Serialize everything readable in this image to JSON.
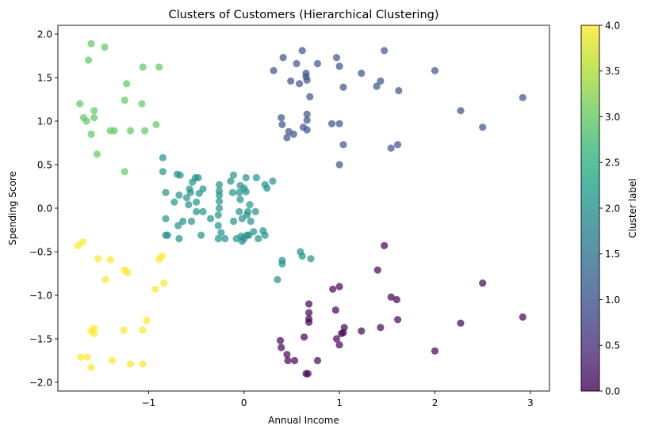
{
  "chart_data": {
    "type": "scatter",
    "title": "Clusters of Customers (Hierarchical Clustering)",
    "xlabel": "Annual Income",
    "ylabel": "Spending Score",
    "xlim": [
      -1.95,
      3.2
    ],
    "ylim": [
      -2.1,
      2.1
    ],
    "xticks": [
      -1,
      0,
      1,
      2,
      3
    ],
    "xtick_labels": [
      "−1",
      "0",
      "1",
      "2",
      "3"
    ],
    "yticks": [
      -2.0,
      -1.5,
      -1.0,
      -0.5,
      0.0,
      0.5,
      1.0,
      1.5,
      2.0
    ],
    "ytick_labels": [
      "−2.0",
      "−1.5",
      "−1.0",
      "−0.5",
      "0.0",
      "0.5",
      "1.0",
      "1.5",
      "2.0"
    ],
    "grid": false,
    "marker_alpha": 0.7,
    "colormap": "viridis",
    "colorbar": {
      "label": "Cluster label",
      "range": [
        0.0,
        4.0
      ],
      "ticks": [
        0.0,
        0.5,
        1.0,
        1.5,
        2.0,
        2.5,
        3.0,
        3.5,
        4.0
      ],
      "tick_labels": [
        "0.0",
        "0.5",
        "1.0",
        "1.5",
        "2.0",
        "2.5",
        "3.0",
        "3.5",
        "4.0"
      ],
      "stops": [
        "#440154",
        "#482878",
        "#3e4989",
        "#31688e",
        "#26828e",
        "#1f9e89",
        "#35b779",
        "#6ece58",
        "#b5de2b",
        "#fde725"
      ]
    },
    "cluster_colors": {
      "0": "#440154",
      "1": "#3b528b",
      "2": "#21918c",
      "3": "#5ec962",
      "4": "#fde725"
    },
    "series": [
      {
        "cluster": 0,
        "points": [
          [
            0.65,
            -1.9
          ],
          [
            0.67,
            -1.9
          ],
          [
            0.38,
            -1.52
          ],
          [
            0.39,
            -1.6
          ],
          [
            0.45,
            -1.68
          ],
          [
            0.46,
            -1.75
          ],
          [
            0.53,
            -1.75
          ],
          [
            0.63,
            -1.48
          ],
          [
            0.68,
            -1.1
          ],
          [
            0.68,
            -1.2
          ],
          [
            0.68,
            -1.27
          ],
          [
            0.68,
            -1.31
          ],
          [
            0.77,
            -1.75
          ],
          [
            0.96,
            -1.17
          ],
          [
            0.97,
            -1.5
          ],
          [
            1.0,
            -1.57
          ],
          [
            1.02,
            -1.44
          ],
          [
            1.04,
            -1.43
          ],
          [
            1.05,
            -1.37
          ],
          [
            1.0,
            -0.9
          ],
          [
            0.93,
            -0.93
          ],
          [
            1.23,
            -1.41
          ],
          [
            1.4,
            -0.71
          ],
          [
            1.43,
            -1.37
          ],
          [
            1.47,
            -0.43
          ],
          [
            1.54,
            -1.02
          ],
          [
            1.6,
            -1.05
          ],
          [
            1.61,
            -1.28
          ],
          [
            2.0,
            -1.64
          ],
          [
            2.27,
            -1.32
          ],
          [
            2.5,
            -0.86
          ],
          [
            2.92,
            -1.25
          ]
        ]
      },
      {
        "cluster": 1,
        "points": [
          [
            0.31,
            1.58
          ],
          [
            0.39,
            1.04
          ],
          [
            0.4,
            0.96
          ],
          [
            0.41,
            1.73
          ],
          [
            0.45,
            0.81
          ],
          [
            0.47,
            0.88
          ],
          [
            0.49,
            1.46
          ],
          [
            0.52,
            0.85
          ],
          [
            0.55,
            1.66
          ],
          [
            0.58,
            1.43
          ],
          [
            0.61,
            1.81
          ],
          [
            0.62,
            0.93
          ],
          [
            0.65,
            1.55
          ],
          [
            0.65,
            1.51
          ],
          [
            0.66,
            1.47
          ],
          [
            0.66,
            1.08
          ],
          [
            0.66,
            1.01
          ],
          [
            0.66,
            0.9
          ],
          [
            0.69,
            1.28
          ],
          [
            0.77,
            1.66
          ],
          [
            0.92,
            0.97
          ],
          [
            0.97,
            1.73
          ],
          [
            1.0,
            0.97
          ],
          [
            1.0,
            1.63
          ],
          [
            1.0,
            0.5
          ],
          [
            1.04,
            0.73
          ],
          [
            1.04,
            1.39
          ],
          [
            1.23,
            1.55
          ],
          [
            1.39,
            1.4
          ],
          [
            1.43,
            1.46
          ],
          [
            1.47,
            1.81
          ],
          [
            1.54,
            0.69
          ],
          [
            1.61,
            0.73
          ],
          [
            1.62,
            1.35
          ],
          [
            2.0,
            1.58
          ],
          [
            2.27,
            1.12
          ],
          [
            2.5,
            0.93
          ],
          [
            2.92,
            1.27
          ]
        ]
      },
      {
        "cluster": 2,
        "points": [
          [
            -0.85,
            0.58
          ],
          [
            -0.85,
            0.42
          ],
          [
            -0.82,
            0.18
          ],
          [
            -0.82,
            -0.12
          ],
          [
            -0.82,
            -0.31
          ],
          [
            -0.8,
            -0.31
          ],
          [
            -0.73,
            0.07
          ],
          [
            -0.7,
            0.39
          ],
          [
            -0.69,
            -0.2
          ],
          [
            -0.68,
            -0.35
          ],
          [
            -0.67,
            0.38
          ],
          [
            -0.68,
            0.15
          ],
          [
            -0.64,
            -0.15
          ],
          [
            -0.6,
            0.12
          ],
          [
            -0.58,
            0.04
          ],
          [
            -0.57,
            0.22
          ],
          [
            -0.56,
            0.18
          ],
          [
            -0.55,
            -0.15
          ],
          [
            -0.54,
            0.3
          ],
          [
            -0.51,
            0.35
          ],
          [
            -0.5,
            0.07
          ],
          [
            -0.5,
            -0.04
          ],
          [
            -0.48,
            0.35
          ],
          [
            -0.47,
            0.17
          ],
          [
            -0.45,
            -0.31
          ],
          [
            -0.43,
            0.22
          ],
          [
            -0.43,
            -0.04
          ],
          [
            -0.35,
            -0.12
          ],
          [
            -0.27,
            -0.35
          ],
          [
            -0.27,
            -0.2
          ],
          [
            -0.27,
            -0.08
          ],
          [
            -0.26,
            0.0
          ],
          [
            -0.26,
            0.08
          ],
          [
            -0.26,
            0.15
          ],
          [
            -0.26,
            0.27
          ],
          [
            -0.26,
            0.2
          ],
          [
            -0.24,
            -0.28
          ],
          [
            -0.2,
            -0.35
          ],
          [
            -0.14,
            0.31
          ],
          [
            -0.12,
            0.18
          ],
          [
            -0.11,
            0.38
          ],
          [
            -0.11,
            -0.15
          ],
          [
            -0.08,
            -0.35
          ],
          [
            -0.05,
            0.18
          ],
          [
            -0.05,
            -0.04
          ],
          [
            -0.04,
            0.26
          ],
          [
            -0.04,
            0.1
          ],
          [
            -0.03,
            -0.32
          ],
          [
            -0.02,
            -0.12
          ],
          [
            -0.02,
            -0.38
          ],
          [
            0.0,
            -0.35
          ],
          [
            0.0,
            0.23
          ],
          [
            0.02,
            0.35
          ],
          [
            0.02,
            0.19
          ],
          [
            0.03,
            -0.31
          ],
          [
            0.03,
            -0.08
          ],
          [
            0.04,
            -0.04
          ],
          [
            0.05,
            -0.31
          ],
          [
            0.06,
            0.04
          ],
          [
            0.07,
            -0.15
          ],
          [
            0.1,
            -0.27
          ],
          [
            0.12,
            -0.04
          ],
          [
            0.13,
            0.35
          ],
          [
            0.15,
            -0.35
          ],
          [
            0.2,
            -0.26
          ],
          [
            0.22,
            -0.31
          ],
          [
            0.22,
            0.27
          ],
          [
            0.24,
            0.23
          ],
          [
            0.3,
            0.31
          ],
          [
            0.35,
            -0.82
          ],
          [
            0.4,
            -0.6
          ],
          [
            0.4,
            -0.64
          ],
          [
            0.59,
            -0.5
          ],
          [
            0.61,
            -0.55
          ],
          [
            0.7,
            -0.58
          ]
        ]
      },
      {
        "cluster": 3,
        "points": [
          [
            -1.6,
            1.89
          ],
          [
            -1.63,
            1.7
          ],
          [
            -1.46,
            1.85
          ],
          [
            -1.06,
            1.62
          ],
          [
            -0.89,
            1.62
          ],
          [
            -1.23,
            1.43
          ],
          [
            -1.25,
            1.24
          ],
          [
            -1.07,
            1.2
          ],
          [
            -1.72,
            1.2
          ],
          [
            -1.57,
            1.12
          ],
          [
            -1.57,
            1.04
          ],
          [
            -1.68,
            1.04
          ],
          [
            -1.65,
            1.0
          ],
          [
            -1.4,
            0.89
          ],
          [
            -1.36,
            0.89
          ],
          [
            -1.19,
            0.89
          ],
          [
            -1.04,
            0.89
          ],
          [
            -0.92,
            0.96
          ],
          [
            -1.6,
            0.85
          ],
          [
            -1.54,
            0.62
          ],
          [
            -1.25,
            0.42
          ]
        ]
      },
      {
        "cluster": 4,
        "points": [
          [
            -1.74,
            -0.43
          ],
          [
            -1.69,
            -0.39
          ],
          [
            -1.53,
            -0.58
          ],
          [
            -1.4,
            -0.59
          ],
          [
            -1.45,
            -0.82
          ],
          [
            -1.25,
            -0.71
          ],
          [
            -1.22,
            -0.74
          ],
          [
            -0.89,
            -0.59
          ],
          [
            -0.86,
            -0.55
          ],
          [
            -0.84,
            -0.86
          ],
          [
            -0.93,
            -0.93
          ],
          [
            -1.02,
            -1.29
          ],
          [
            -1.06,
            -1.4
          ],
          [
            -1.26,
            -1.4
          ],
          [
            -1.6,
            -1.41
          ],
          [
            -1.57,
            -1.38
          ],
          [
            -1.57,
            -1.44
          ],
          [
            -1.71,
            -1.71
          ],
          [
            -1.64,
            -1.71
          ],
          [
            -1.6,
            -1.83
          ],
          [
            -1.38,
            -1.75
          ],
          [
            -1.19,
            -1.79
          ],
          [
            -1.06,
            -1.79
          ]
        ]
      }
    ]
  }
}
